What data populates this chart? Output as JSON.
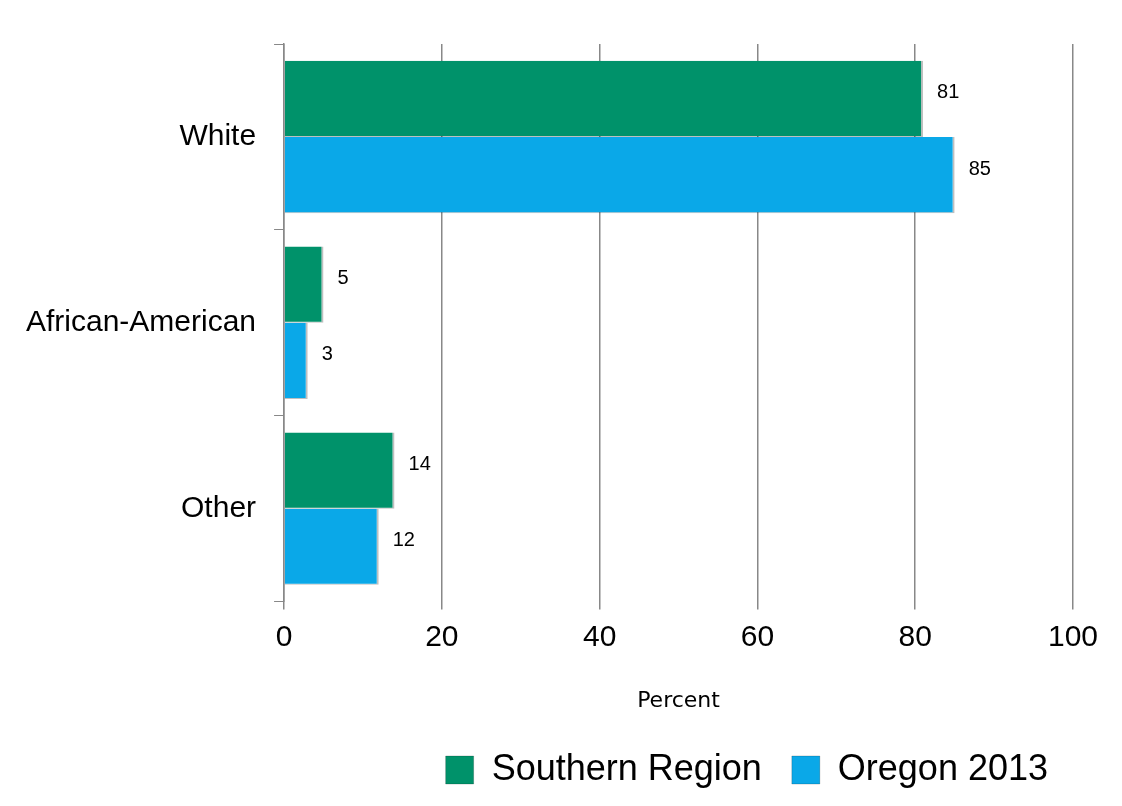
{
  "chart_data": {
    "type": "bar",
    "orientation": "horizontal",
    "categories": [
      "White",
      "African-American",
      "Other"
    ],
    "series": [
      {
        "name": "Southern Region",
        "color": "#00926a",
        "values": [
          81,
          5,
          14
        ]
      },
      {
        "name": "Oregon 2013",
        "color": "#0aa8e8",
        "values": [
          85,
          3,
          12
        ]
      }
    ],
    "xlabel": "Percent",
    "xlim": [
      0,
      100
    ],
    "xticks": [
      0,
      20,
      40,
      60,
      80,
      100
    ],
    "grid": "x",
    "legend": "bottom",
    "data_labels": true
  }
}
